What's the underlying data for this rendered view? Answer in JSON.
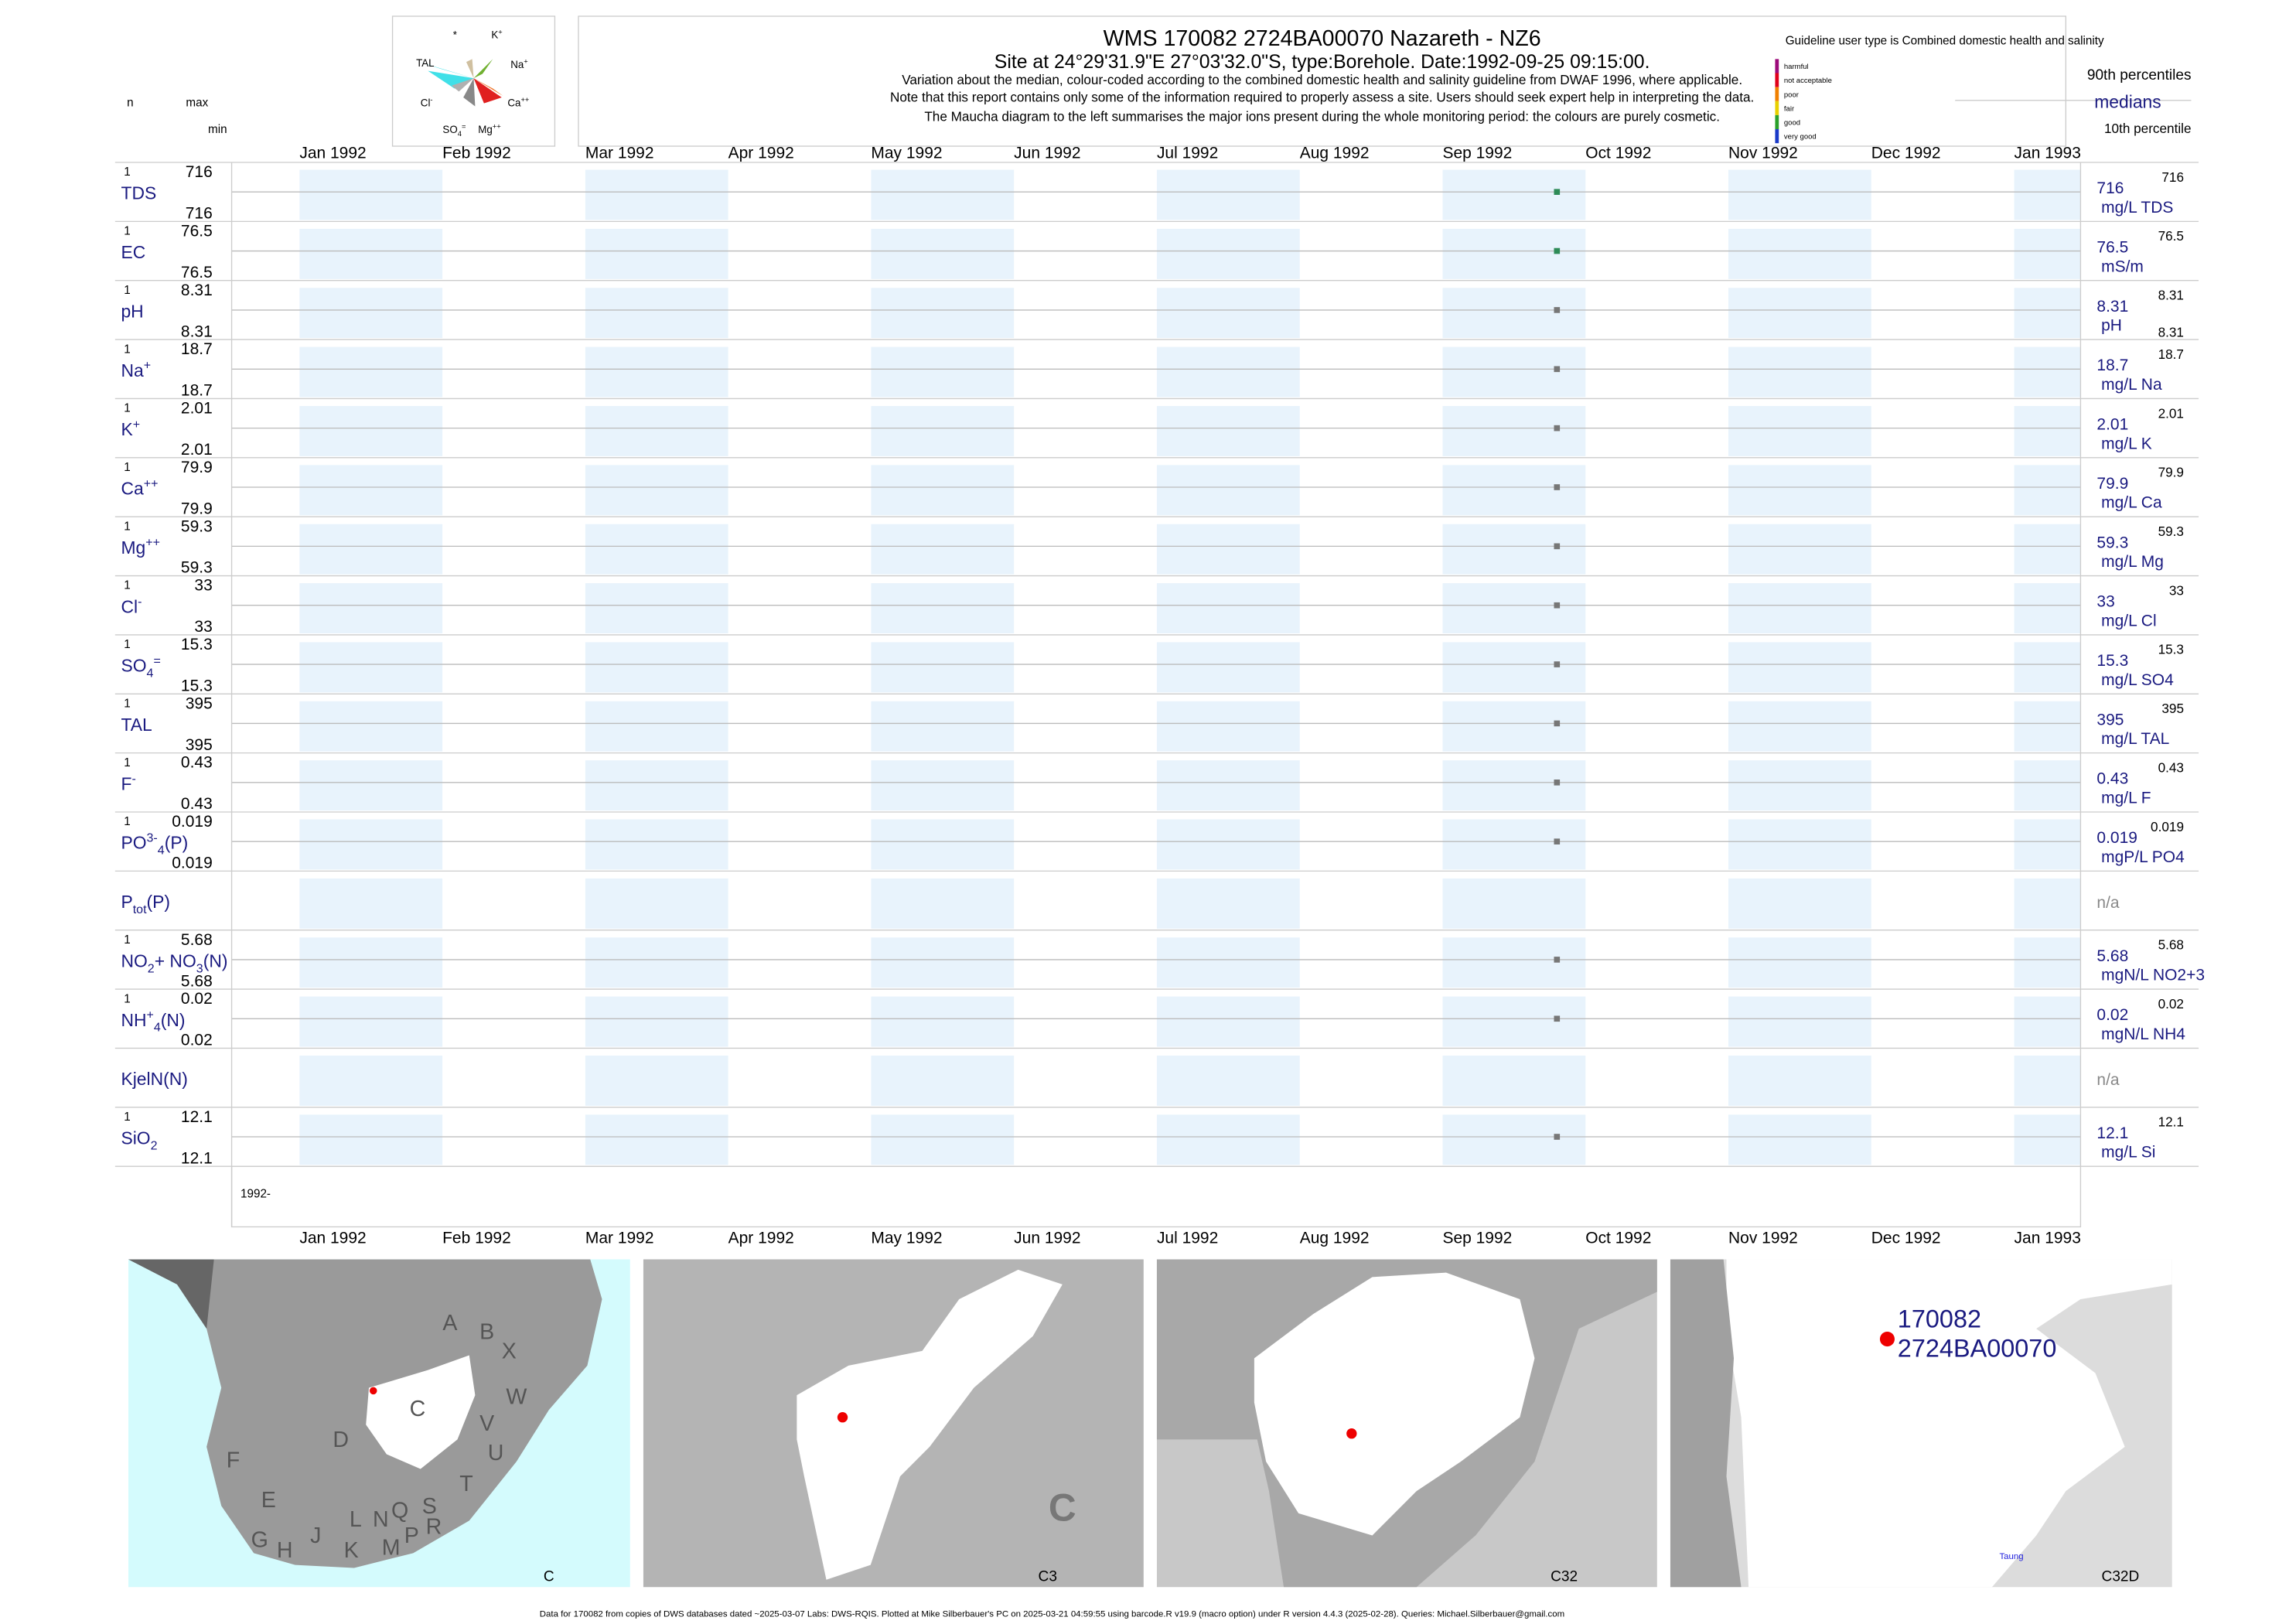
{
  "header": {
    "title": "WMS 170082 2724BA00070 Nazareth - NZ6",
    "subtitle": "Site at 24°29'31.9\"E 27°03'32.0\"S, type:Borehole. Date:1992-09-25 09:15:00.",
    "notes": [
      "Variation about the median,  colour-coded according to the combined domestic health and salinity guideline from DWAF 1996, where applicable.",
      "Note that this report contains only some of the information required to properly assess a site. Users should seek expert help in interpreting the data.",
      "The Maucha diagram to the left summarises the major ions present during the whole monitoring period: the colours are purely cosmetic."
    ]
  },
  "maucha_labels": [
    [
      {
        "t": "*"
      }
    ],
    [
      {
        "t": "K"
      },
      {
        "t": "+",
        "s": "sup"
      }
    ],
    [
      {
        "t": "TAL"
      }
    ],
    [
      {
        "t": "Na"
      },
      {
        "t": "+",
        "s": "sup"
      }
    ],
    [
      {
        "t": "Cl"
      },
      {
        "t": "-",
        "s": "sup"
      }
    ],
    [
      {
        "t": "Ca"
      },
      {
        "t": "++",
        "s": "sup"
      }
    ],
    [
      {
        "t": "SO"
      },
      {
        "t": "4",
        "s": "sub"
      },
      {
        "t": "=",
        "s": "sup"
      }
    ],
    [
      {
        "t": "Mg"
      },
      {
        "t": "++",
        "s": "sup"
      }
    ]
  ],
  "column_heads": {
    "n": "n",
    "max": "max",
    "min": "min"
  },
  "guideline": "Guideline user type is Combined domestic health and salinity",
  "guideline_levels": [
    {
      "label": "harmful",
      "color": "#9c0a7a"
    },
    {
      "label": "not acceptable",
      "color": "#e0001a"
    },
    {
      "label": "poor",
      "color": "#f08000"
    },
    {
      "label": "fair",
      "color": "#e8d000"
    },
    {
      "label": "good",
      "color": "#2aa02a"
    },
    {
      "label": "very good",
      "color": "#1a3ac8"
    }
  ],
  "percentile_legend": {
    "p90": "90th percentiles",
    "median": "medians",
    "p10": "10th percentile"
  },
  "months": [
    "Jan 1992",
    "Feb 1992",
    "Mar 1992",
    "Apr 1992",
    "May 1992",
    "Jun 1992",
    "Jul 1992",
    "Aug 1992",
    "Sep 1992",
    "Oct 1992",
    "Nov 1992",
    "Dec 1992",
    "Jan 1993"
  ],
  "sample_date": "1992-09-25",
  "year_label": "1992-",
  "rows": [
    {
      "label": [
        {
          "t": "TDS"
        }
      ],
      "n": 1,
      "max": 716,
      "min": 716,
      "median": 716,
      "unit": "mg/L TDS",
      "p90": 716,
      "color": "#2e8b57"
    },
    {
      "label": [
        {
          "t": "EC"
        }
      ],
      "n": 1,
      "max": 76.5,
      "min": 76.5,
      "median": 76.5,
      "unit": "mS/m",
      "p90": 76.5,
      "color": "#2e8b57"
    },
    {
      "label": [
        {
          "t": "pH"
        }
      ],
      "n": 1,
      "max": 8.31,
      "min": 8.31,
      "median": 8.31,
      "unit": "pH",
      "p90": 8.31,
      "p10": 8.31,
      "color": "#777777"
    },
    {
      "label": [
        {
          "t": "Na"
        },
        {
          "t": "+",
          "s": "sup"
        }
      ],
      "n": 1,
      "max": 18.7,
      "min": 18.7,
      "median": 18.7,
      "unit": "mg/L Na",
      "p90": 18.7,
      "color": "#777777"
    },
    {
      "label": [
        {
          "t": "K"
        },
        {
          "t": "+",
          "s": "sup"
        }
      ],
      "n": 1,
      "max": 2.01,
      "min": 2.01,
      "median": 2.01,
      "unit": "mg/L K",
      "p90": 2.01,
      "color": "#777777"
    },
    {
      "label": [
        {
          "t": "Ca"
        },
        {
          "t": "++",
          "s": "sup"
        }
      ],
      "n": 1,
      "max": 79.9,
      "min": 79.9,
      "median": 79.9,
      "unit": "mg/L Ca",
      "p90": 79.9,
      "color": "#777777"
    },
    {
      "label": [
        {
          "t": "Mg"
        },
        {
          "t": "++",
          "s": "sup"
        }
      ],
      "n": 1,
      "max": 59.3,
      "min": 59.3,
      "median": 59.3,
      "unit": "mg/L Mg",
      "p90": 59.3,
      "color": "#777777"
    },
    {
      "label": [
        {
          "t": "Cl"
        },
        {
          "t": "-",
          "s": "sup"
        }
      ],
      "n": 1,
      "max": 33,
      "min": 33,
      "median": 33,
      "unit": "mg/L Cl",
      "p90": 33,
      "color": "#777777"
    },
    {
      "label": [
        {
          "t": "SO"
        },
        {
          "t": "4",
          "s": "sub"
        },
        {
          "t": "=",
          "s": "sup"
        }
      ],
      "n": 1,
      "max": 15.3,
      "min": 15.3,
      "median": 15.3,
      "unit": "mg/L SO4",
      "p90": 15.3,
      "color": "#777777"
    },
    {
      "label": [
        {
          "t": "TAL"
        }
      ],
      "n": 1,
      "max": 395,
      "min": 395,
      "median": 395,
      "unit": "mg/L TAL",
      "p90": 395,
      "color": "#777777"
    },
    {
      "label": [
        {
          "t": "F"
        },
        {
          "t": "-",
          "s": "sup"
        }
      ],
      "n": 1,
      "max": 0.43,
      "min": 0.43,
      "median": 0.43,
      "unit": "mg/L F",
      "p90": 0.43,
      "color": "#777777"
    },
    {
      "label": [
        {
          "t": "PO"
        },
        {
          "t": "3-",
          "s": "sup"
        },
        {
          "t": "4",
          "s": "sub"
        },
        {
          "t": "(P)"
        }
      ],
      "n": 1,
      "max": 0.019,
      "min": 0.019,
      "median": 0.019,
      "unit": "mgP/L PO4",
      "p90": 0.019,
      "color": "#777777"
    },
    {
      "label": [
        {
          "t": "P"
        },
        {
          "t": "tot",
          "s": "sub"
        },
        {
          "t": "(P)"
        }
      ],
      "status": "n/a"
    },
    {
      "label": [
        {
          "t": "NO"
        },
        {
          "t": "2",
          "s": "sub"
        },
        {
          "t": "+ NO"
        },
        {
          "t": "3",
          "s": "sub"
        },
        {
          "t": "(N)"
        }
      ],
      "n": 1,
      "max": 5.68,
      "min": 5.68,
      "median": 5.68,
      "unit": "mgN/L NO2+3",
      "p90": 5.68,
      "color": "#777777"
    },
    {
      "label": [
        {
          "t": "NH"
        },
        {
          "t": "+",
          "s": "sup"
        },
        {
          "t": "4",
          "s": "sub"
        },
        {
          "t": "(N)"
        }
      ],
      "n": 1,
      "max": 0.02,
      "min": 0.02,
      "median": 0.02,
      "unit": "mgN/L NH4",
      "p90": 0.02,
      "color": "#777777"
    },
    {
      "label": [
        {
          "t": "KjelN(N)"
        }
      ],
      "status": "n/a"
    },
    {
      "label": [
        {
          "t": "SiO"
        },
        {
          "t": "2",
          "s": "sub"
        }
      ],
      "n": 1,
      "max": 12.1,
      "min": 12.1,
      "median": 12.1,
      "unit": "mg/L Si",
      "p90": 12.1,
      "color": "#777777"
    }
  ],
  "maps": {
    "region_letters": [
      "A",
      "B",
      "X",
      "W",
      "C",
      "V",
      "U",
      "D",
      "F",
      "T",
      "E",
      "S",
      "R",
      "Q",
      "N",
      "L",
      "P",
      "G",
      "H",
      "J",
      "K",
      "M"
    ],
    "panel_labels": [
      "C",
      "C3",
      "C32",
      "C32D"
    ],
    "big_letter": "C",
    "site_labels": [
      "170082",
      "2724BA00070"
    ],
    "town": "Taung"
  },
  "footer": "Data for 170082 from copies of DWS databases dated ~2025-03-07 Labs: DWS-RQIS. Plotted at Mike Silberbauer's PC on 2025-03-21 04:59:55 using barcode.R v19.9 (macro option) under R version 4.4.3 (2025-02-28). Queries: Michael.Silberbauer@gmail.com"
}
